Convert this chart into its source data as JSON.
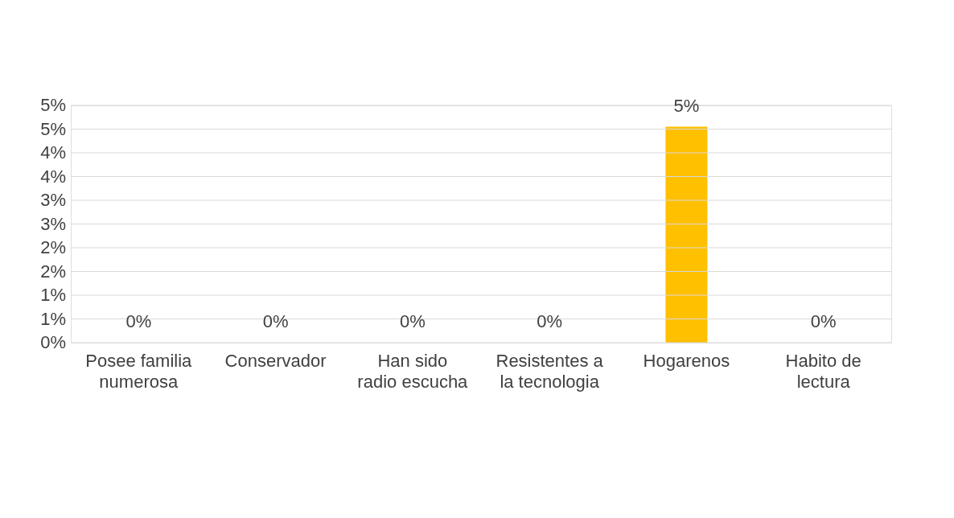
{
  "chart_data": {
    "type": "bar",
    "categories": [
      "Posee familia numerosa",
      "Conservador",
      "Han sido radio escucha",
      "Resistentes a la tecnologia",
      "Hogarenos",
      "Habito de lectura"
    ],
    "values": [
      0,
      0,
      0,
      0,
      4.55,
      0
    ],
    "value_labels": [
      "0%",
      "0%",
      "0%",
      "0%",
      "5%",
      "0%"
    ],
    "color": "#ffc000",
    "ylim": [
      0,
      5
    ],
    "yticks": [
      {
        "value": 0,
        "label": "0%"
      },
      {
        "value": 0.5,
        "label": "1%"
      },
      {
        "value": 1,
        "label": "1%"
      },
      {
        "value": 1.5,
        "label": "2%"
      },
      {
        "value": 2,
        "label": "2%"
      },
      {
        "value": 2.5,
        "label": "3%"
      },
      {
        "value": 3,
        "label": "3%"
      },
      {
        "value": 3.5,
        "label": "4%"
      },
      {
        "value": 4,
        "label": "4%"
      },
      {
        "value": 4.5,
        "label": "5%"
      },
      {
        "value": 5,
        "label": "5%"
      }
    ],
    "grid": "y"
  }
}
